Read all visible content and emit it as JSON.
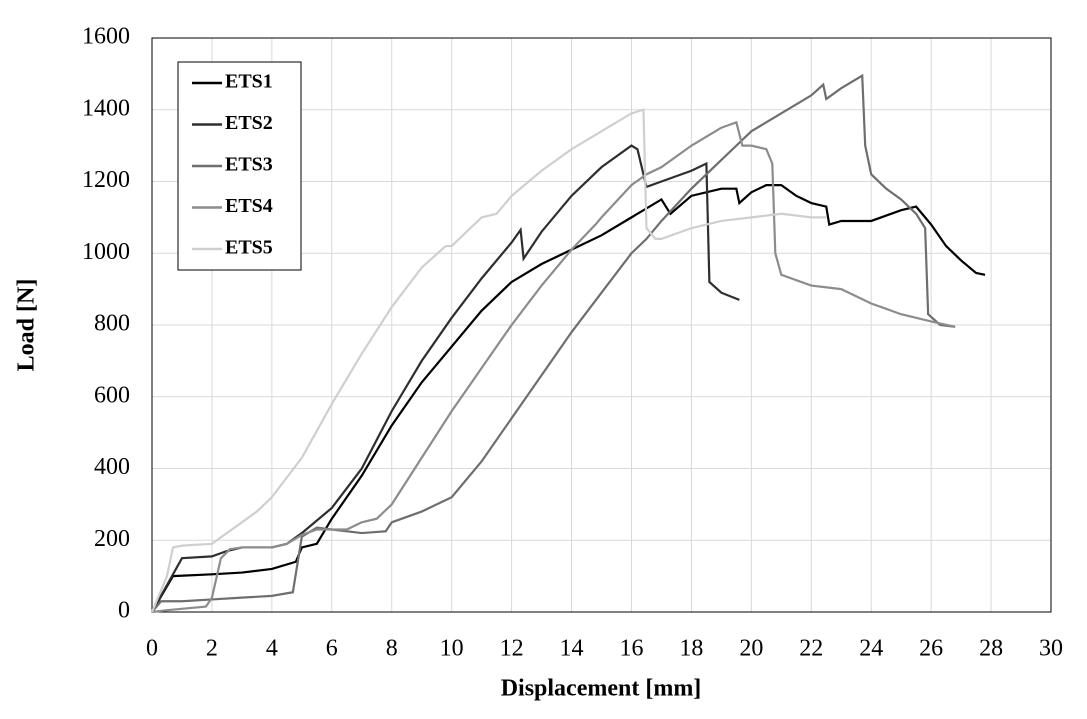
{
  "chart_data": {
    "type": "line",
    "xlabel": "Displacement [mm]",
    "ylabel": "Load [N]",
    "xlim": [
      0,
      30
    ],
    "xticks": [
      0,
      2,
      4,
      6,
      8,
      10,
      12,
      14,
      16,
      18,
      20,
      22,
      24,
      26,
      28,
      30
    ],
    "ylim": [
      0,
      1600
    ],
    "yticks": [
      0,
      200,
      400,
      600,
      800,
      1000,
      1200,
      1400,
      1600
    ],
    "grid": true,
    "legend": "upper left",
    "series": [
      {
        "name": "ETS1",
        "color": "#000000",
        "x": [
          0,
          0.7,
          2,
          3,
          4,
          4.8,
          5,
          5.5,
          6,
          7,
          8,
          9,
          10,
          11,
          12,
          13,
          14,
          15,
          16,
          17,
          17.3,
          18,
          19,
          19.5,
          19.6,
          20,
          20.5,
          21,
          21.5,
          22,
          22.5,
          22.6,
          23,
          24,
          25,
          25.5,
          25.8,
          26,
          26.5,
          27,
          27.5,
          27.8
        ],
        "values": [
          0,
          100,
          105,
          110,
          120,
          140,
          180,
          190,
          260,
          380,
          520,
          640,
          740,
          840,
          920,
          970,
          1010,
          1050,
          1100,
          1150,
          1110,
          1160,
          1180,
          1180,
          1140,
          1170,
          1190,
          1190,
          1160,
          1140,
          1130,
          1080,
          1090,
          1090,
          1120,
          1130,
          1100,
          1080,
          1020,
          980,
          945,
          940
        ]
      },
      {
        "name": "ETS2",
        "color": "#2e2e2e",
        "x": [
          0,
          1,
          2,
          2.5,
          3,
          4,
          4.5,
          5,
          6,
          7,
          8,
          9,
          10,
          11,
          12,
          12.3,
          12.4,
          13,
          14,
          15,
          16,
          16.2,
          16.5,
          17,
          18,
          18.5,
          18.6,
          19,
          19.6
        ],
        "values": [
          0,
          150,
          155,
          170,
          180,
          180,
          190,
          220,
          290,
          400,
          560,
          700,
          820,
          930,
          1030,
          1065,
          985,
          1060,
          1160,
          1240,
          1300,
          1290,
          1185,
          1200,
          1230,
          1250,
          920,
          890,
          870
        ]
      },
      {
        "name": "ETS3",
        "color": "#6e6e6e",
        "x": [
          0,
          0.3,
          1,
          2,
          3,
          4,
          4.7,
          5,
          5.5,
          6,
          7,
          7.8,
          8,
          9,
          10,
          11,
          12,
          13,
          14,
          15,
          16,
          16.5,
          17,
          18,
          19,
          19.5,
          20,
          21,
          22,
          22.4,
          22.5,
          23,
          23.7,
          23.8,
          24,
          24.5,
          25,
          25.5,
          25.8,
          25.9,
          26.3,
          26.8
        ],
        "values": [
          0,
          30,
          30,
          35,
          40,
          45,
          55,
          210,
          235,
          230,
          220,
          225,
          250,
          280,
          320,
          420,
          540,
          660,
          780,
          890,
          1000,
          1040,
          1090,
          1180,
          1260,
          1300,
          1340,
          1390,
          1440,
          1470,
          1430,
          1460,
          1495,
          1300,
          1220,
          1180,
          1150,
          1110,
          1070,
          830,
          800,
          795
        ]
      },
      {
        "name": "ETS4",
        "color": "#8c8c8c",
        "x": [
          0,
          0.5,
          1.8,
          2,
          2.3,
          2.6,
          3,
          4,
          4.5,
          5,
          5.5,
          6,
          6.5,
          7,
          7.5,
          8,
          9,
          10,
          11,
          12,
          13,
          14,
          14.8,
          15,
          16,
          16.5,
          17,
          18,
          19,
          19.5,
          19.7,
          20,
          20.5,
          20.7,
          20.8,
          21,
          22,
          23,
          24,
          25,
          26,
          26.8
        ],
        "values": [
          0,
          5,
          15,
          40,
          150,
          175,
          180,
          180,
          190,
          215,
          230,
          230,
          230,
          250,
          260,
          300,
          430,
          560,
          680,
          800,
          910,
          1010,
          1080,
          1100,
          1190,
          1220,
          1240,
          1300,
          1350,
          1365,
          1300,
          1300,
          1290,
          1250,
          1000,
          940,
          910,
          900,
          860,
          830,
          810,
          795
        ]
      },
      {
        "name": "ETS5",
        "color": "#cfcfcf",
        "x": [
          0,
          0.5,
          0.7,
          1,
          2,
          2.5,
          3,
          3.5,
          4,
          5,
          6,
          7,
          8,
          9,
          9.8,
          10,
          11,
          11.5,
          12,
          13,
          13.5,
          14,
          15,
          16,
          16.4,
          16.5,
          16.8,
          17,
          18,
          19,
          20,
          21,
          22,
          22.5
        ],
        "values": [
          0,
          100,
          180,
          185,
          190,
          220,
          250,
          280,
          320,
          430,
          580,
          720,
          850,
          960,
          1020,
          1020,
          1100,
          1110,
          1160,
          1230,
          1260,
          1290,
          1340,
          1390,
          1400,
          1070,
          1040,
          1040,
          1070,
          1090,
          1100,
          1110,
          1100,
          1100
        ]
      }
    ]
  }
}
